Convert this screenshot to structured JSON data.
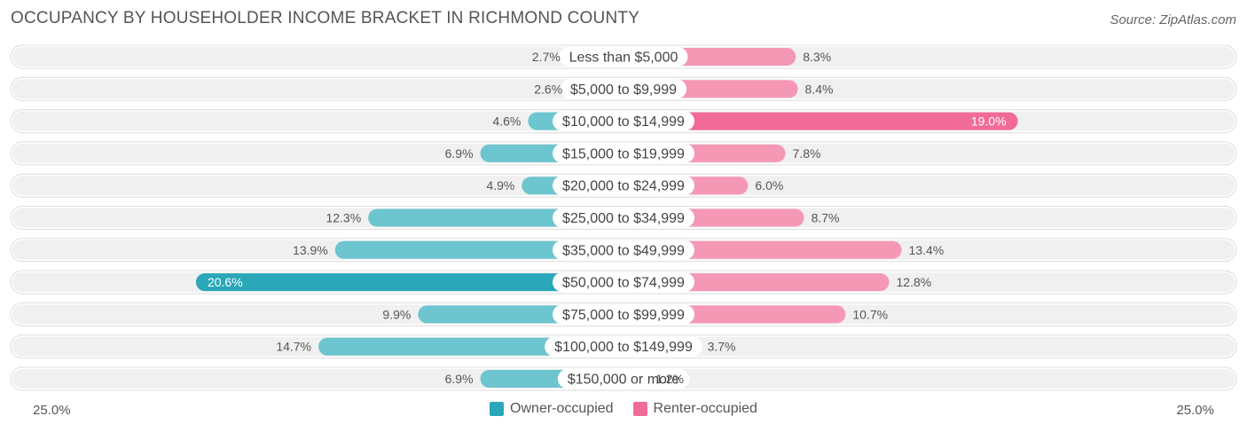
{
  "header": {
    "title": "OCCUPANCY BY HOUSEHOLDER INCOME BRACKET IN RICHMOND COUNTY",
    "source": "Source: ZipAtlas.com"
  },
  "axis": {
    "left_label": "25.0%",
    "right_label": "25.0%"
  },
  "legend": {
    "owner_label": "Owner-occupied",
    "renter_label": "Renter-occupied"
  },
  "colors": {
    "owner": "#6cc5cf",
    "owner_highlight": "#2aa7b8",
    "renter": "#f598b5",
    "renter_highlight": "#f06b97",
    "row_bg": "#f0f0f0"
  },
  "chart_data": {
    "type": "bar",
    "orientation": "horizontal-diverging",
    "xlim": [
      -25,
      25
    ],
    "categories": [
      "Less than $5,000",
      "$5,000 to $9,999",
      "$10,000 to $14,999",
      "$15,000 to $19,999",
      "$20,000 to $24,999",
      "$25,000 to $34,999",
      "$35,000 to $49,999",
      "$50,000 to $74,999",
      "$75,000 to $99,999",
      "$100,000 to $149,999",
      "$150,000 or more"
    ],
    "series": [
      {
        "name": "Owner-occupied",
        "side": "left",
        "values": [
          2.7,
          2.6,
          4.6,
          6.9,
          4.9,
          12.3,
          13.9,
          20.6,
          9.9,
          14.7,
          6.9
        ],
        "labels": [
          "2.7%",
          "2.6%",
          "4.6%",
          "6.9%",
          "4.9%",
          "12.3%",
          "13.9%",
          "20.6%",
          "9.9%",
          "14.7%",
          "6.9%"
        ]
      },
      {
        "name": "Renter-occupied",
        "side": "right",
        "values": [
          8.3,
          8.4,
          19.0,
          7.8,
          6.0,
          8.7,
          13.4,
          12.8,
          10.7,
          3.7,
          1.2
        ],
        "labels": [
          "8.3%",
          "8.4%",
          "19.0%",
          "7.8%",
          "6.0%",
          "8.7%",
          "13.4%",
          "12.8%",
          "10.7%",
          "3.7%",
          "1.2%"
        ]
      }
    ]
  }
}
